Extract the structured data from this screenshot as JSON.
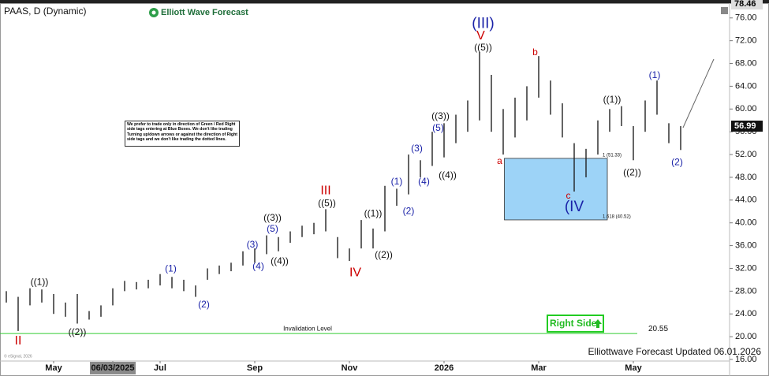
{
  "chart_data": {
    "type": "hilo",
    "title": "PAAS, D (Dynamic)",
    "logo": "Elliott Wave Forecast",
    "copyright": "© eSignal, 2026",
    "footer_note": "Elliottwave Forecast Updated 06.01.2026",
    "right_side": "Right Side",
    "note": "We prefer to trade only in direction of Green / Red Right side tags entering at Blue Boxes. We don't like trading Turning up/down arrows or against the direction of Right side tags and we don't like trading the dotted lines.",
    "color": "#222222",
    "categories": [
      null,
      null,
      null,
      null,
      "May",
      null,
      null,
      null,
      null,
      "06/03/2025",
      null,
      null,
      null,
      "Jul",
      null,
      null,
      null,
      null,
      null,
      null,
      null,
      "Sep",
      null,
      null,
      null,
      null,
      null,
      null,
      null,
      "Nov",
      null,
      null,
      null,
      null,
      null,
      null,
      null,
      "2026",
      null,
      null,
      null,
      null,
      null,
      null,
      null,
      "Mar",
      null,
      null,
      null,
      null,
      null,
      null,
      null,
      "May",
      null,
      null,
      null,
      null
    ],
    "high": [
      28,
      27,
      28.5,
      28.3,
      27.5,
      26,
      27.5,
      24.5,
      25.5,
      28.5,
      29.8,
      29.6,
      30,
      31,
      30.5,
      30,
      29,
      32,
      32.5,
      33,
      35,
      35.5,
      37.8,
      37.5,
      38.5,
      39.5,
      40,
      42.4,
      37.5,
      35.5,
      40.5,
      39,
      46.5,
      46,
      52,
      51,
      56,
      57.5,
      59,
      61.5,
      70,
      66,
      60,
      62,
      64,
      69.3,
      65,
      61,
      54,
      53,
      58,
      60,
      60.5,
      57,
      61.5,
      65,
      57.5,
      56.99
    ],
    "low": [
      26,
      21,
      25.5,
      26,
      24,
      23.5,
      22.3,
      23,
      23.5,
      25.5,
      28,
      28.3,
      28.5,
      29,
      28.5,
      28,
      27,
      30,
      31,
      31.5,
      32.5,
      33,
      34.5,
      35,
      36.5,
      37.5,
      38,
      38.5,
      33.8,
      33.3,
      35.5,
      35.5,
      38.5,
      43,
      45,
      48,
      50,
      51.5,
      54,
      56,
      58,
      56,
      52,
      55,
      58,
      62,
      59,
      55,
      45.5,
      48,
      52,
      56,
      57,
      51,
      56,
      59,
      54,
      52.8
    ],
    "ylim": [
      16,
      78.46
    ],
    "yticks": [
      {
        "value": 16,
        "label": "16.00"
      },
      {
        "value": 20,
        "label": "20.00"
      },
      {
        "value": 24,
        "label": "24.00"
      },
      {
        "value": 28,
        "label": "28.00"
      },
      {
        "value": 32,
        "label": "32.00"
      },
      {
        "value": 36,
        "label": "36.00"
      },
      {
        "value": 40,
        "label": "40.00"
      },
      {
        "value": 44,
        "label": "44.00"
      },
      {
        "value": 48,
        "label": "48.00"
      },
      {
        "value": 52,
        "label": "52.00"
      },
      {
        "value": 56,
        "label": "56.00"
      },
      {
        "value": 60,
        "label": "60.00"
      },
      {
        "value": 64,
        "label": "64.00"
      },
      {
        "value": 68,
        "label": "68.00"
      },
      {
        "value": 72,
        "label": "72.00"
      },
      {
        "value": 76,
        "label": "76.00"
      }
    ],
    "price_tags": [
      {
        "value": 78.46,
        "color": "#dddddd"
      },
      {
        "value": 56.99,
        "color": "#111111"
      }
    ],
    "invalidation": {
      "value": 20.55,
      "label": "Invalidation Level",
      "color": "#33cc33"
    },
    "zone": {
      "from": 42.1,
      "to": 50.8,
      "top": {
        "value": 51.33,
        "label": "1 (51.33)"
      },
      "bottom": {
        "value": 40.52,
        "label": "1.618 (40.52)"
      },
      "color": "#9dd3f7"
    },
    "annotations": [
      {
        "text": "II",
        "x": 1,
        "y": 19.2,
        "color": "#cc0000"
      },
      {
        "text": "((1))",
        "x": 2.8,
        "y": 29.5,
        "color": "#111111"
      },
      {
        "text": "((2))",
        "x": 6,
        "y": 20.7,
        "color": "#111111"
      },
      {
        "text": "(1)",
        "x": 13.9,
        "y": 31.9,
        "color": "#1a22a8"
      },
      {
        "text": "(2)",
        "x": 16.7,
        "y": 25.6,
        "color": "#1a22a8"
      },
      {
        "text": "(3)",
        "x": 20.8,
        "y": 36.1,
        "color": "#1a22a8"
      },
      {
        "text": "(4)",
        "x": 21.3,
        "y": 32.3,
        "color": "#1a22a8"
      },
      {
        "text": "(5)",
        "x": 22.5,
        "y": 38.9,
        "color": "#1a22a8"
      },
      {
        "text": "((3))",
        "x": 22.5,
        "y": 40.8,
        "color": "#111111"
      },
      {
        "text": "((4))",
        "x": 23.1,
        "y": 33.2,
        "color": "#111111"
      },
      {
        "text": "III",
        "x": 27,
        "y": 45.6,
        "color": "#cc0000"
      },
      {
        "text": "((5))",
        "x": 27.1,
        "y": 43.4,
        "color": "#111111"
      },
      {
        "text": "IV",
        "x": 29.5,
        "y": 31.2,
        "color": "#cc0000"
      },
      {
        "text": "((1))",
        "x": 31,
        "y": 41.6,
        "color": "#111111"
      },
      {
        "text": "((2))",
        "x": 31.9,
        "y": 34.3,
        "color": "#111111"
      },
      {
        "text": "(1)",
        "x": 33,
        "y": 47.2,
        "color": "#1a22a8"
      },
      {
        "text": "(2)",
        "x": 34,
        "y": 42,
        "color": "#1a22a8"
      },
      {
        "text": "(3)",
        "x": 34.7,
        "y": 53,
        "color": "#1a22a8"
      },
      {
        "text": "(4)",
        "x": 35.3,
        "y": 47.2,
        "color": "#1a22a8"
      },
      {
        "text": "(5)",
        "x": 36.5,
        "y": 56.6,
        "color": "#1a22a8"
      },
      {
        "text": "((3))",
        "x": 36.7,
        "y": 58.7,
        "color": "#111111"
      },
      {
        "text": "((4))",
        "x": 37.3,
        "y": 48.3,
        "color": "#111111"
      },
      {
        "text": "(III)",
        "x": 40.3,
        "y": 74.9,
        "color": "#1a22a8"
      },
      {
        "text": "V",
        "x": 40.1,
        "y": 72.8,
        "color": "#cc0000"
      },
      {
        "text": "((5))",
        "x": 40.3,
        "y": 70.7,
        "color": "#111111"
      },
      {
        "text": "a",
        "x": 41.7,
        "y": 50.8,
        "color": "#cc0000"
      },
      {
        "text": "b",
        "x": 44.7,
        "y": 69.9,
        "color": "#cc0000"
      },
      {
        "text": "c",
        "x": 47.5,
        "y": 44.7,
        "color": "#cc0000"
      },
      {
        "text": "(IV",
        "x": 48,
        "y": 42.7,
        "color": "#1a22a8"
      },
      {
        "text": "((1))",
        "x": 51.2,
        "y": 61.6,
        "color": "#111111"
      },
      {
        "text": "((2))",
        "x": 52.9,
        "y": 48.8,
        "color": "#111111"
      },
      {
        "text": "(1)",
        "x": 54.8,
        "y": 65.9,
        "color": "#1a22a8"
      },
      {
        "text": "(2)",
        "x": 56.7,
        "y": 50.6,
        "color": "#1a22a8"
      }
    ]
  }
}
